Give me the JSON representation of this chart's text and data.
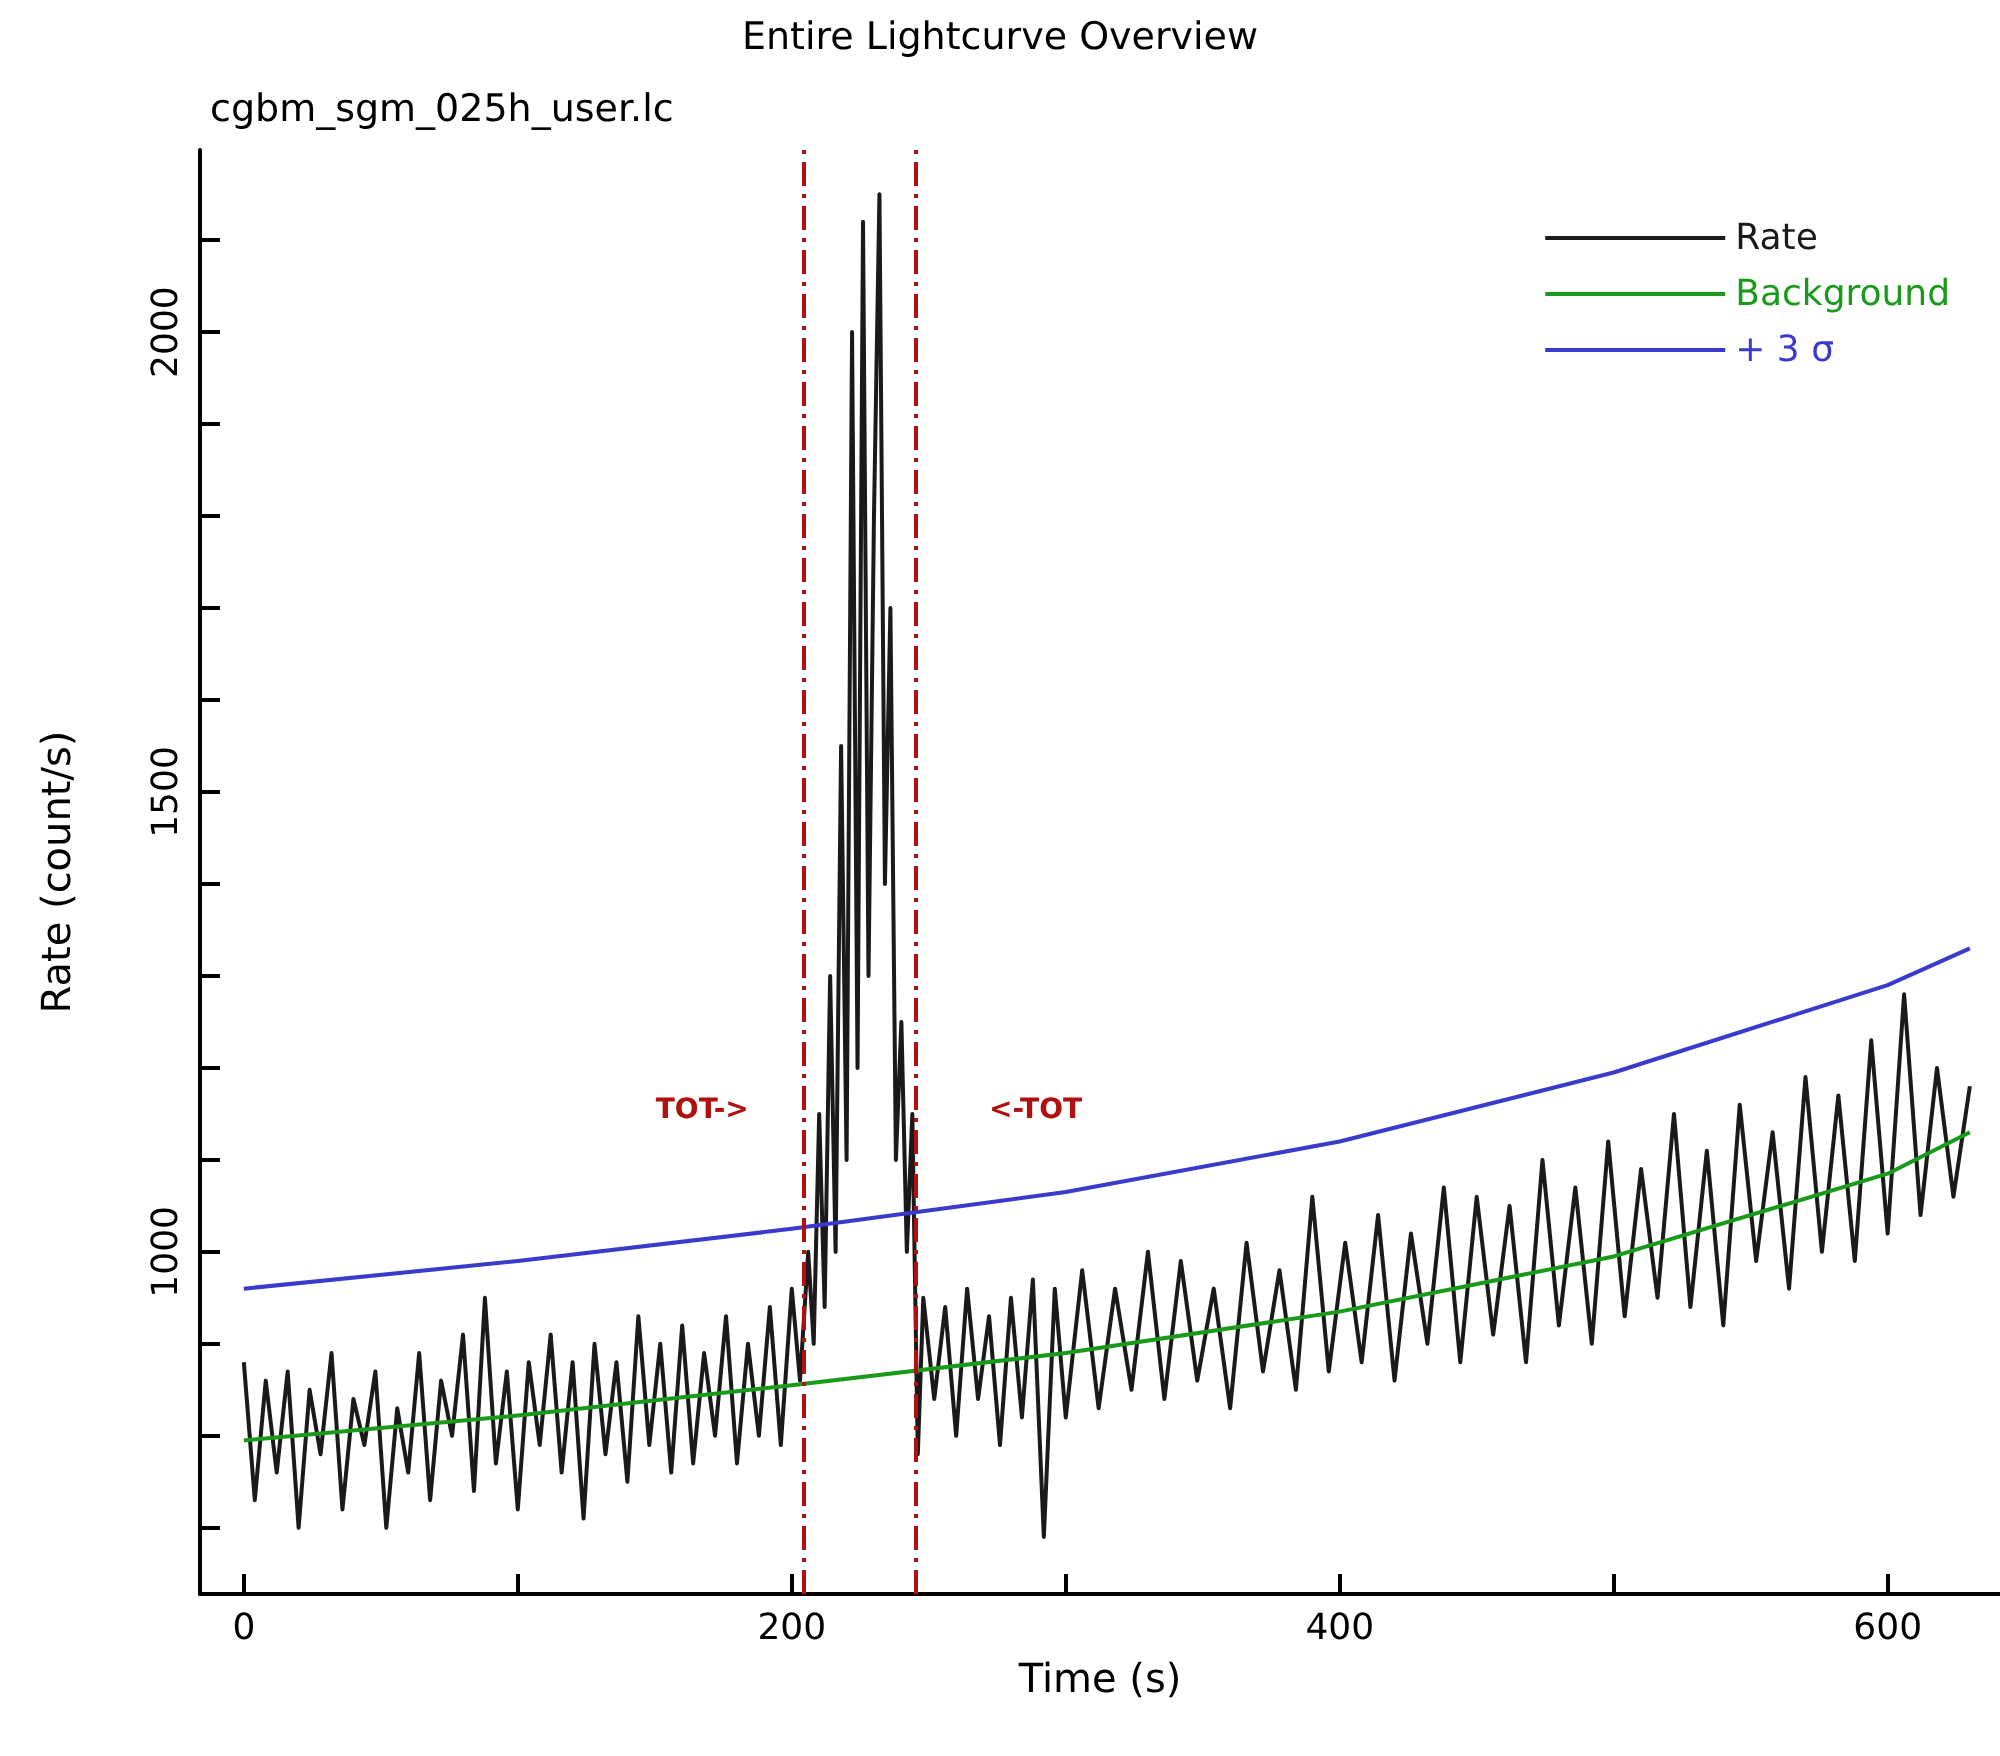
{
  "chart_data": {
    "type": "line",
    "title": "Entire Lightcurve Overview",
    "subtitle": "cgbm_sgm_025h_user.lc",
    "xlabel": "Time (s)",
    "ylabel": "Rate (count/s)",
    "xlim": [
      -16,
      641
    ],
    "ylim": [
      628,
      2198
    ],
    "xticks": [
      0,
      {
        "value": 100,
        "label": null
      },
      200,
      {
        "value": 300,
        "label": null
      },
      400,
      {
        "value": 500,
        "label": null
      },
      600
    ],
    "yticks": [
      {
        "value": 700,
        "label": null
      },
      {
        "value": 800,
        "label": null
      },
      {
        "value": 900,
        "label": null
      },
      1000,
      {
        "value": 1100,
        "label": null
      },
      {
        "value": 1200,
        "label": null
      },
      {
        "value": 1300,
        "label": null
      },
      {
        "value": 1400,
        "label": null
      },
      1500,
      {
        "value": 1600,
        "label": null
      },
      {
        "value": 1700,
        "label": null
      },
      {
        "value": 1800,
        "label": null
      },
      {
        "value": 1900,
        "label": null
      },
      2000,
      {
        "value": 2100,
        "label": null
      }
    ],
    "grid": false,
    "legend": "top right",
    "marker": "none",
    "series": [
      {
        "name": "Rate",
        "color": "#1a1a1a",
        "x": [
          0,
          4,
          8,
          12,
          16,
          20,
          24,
          28,
          32,
          36,
          40,
          44,
          48,
          52,
          56,
          60,
          64,
          68,
          72,
          76,
          80,
          84,
          88,
          92,
          96,
          100,
          104,
          108,
          112,
          116,
          120,
          124,
          128,
          132,
          136,
          140,
          144,
          148,
          152,
          156,
          160,
          164,
          168,
          172,
          176,
          180,
          184,
          188,
          192,
          196,
          200,
          203,
          206,
          208,
          210,
          212,
          214,
          216,
          218,
          220,
          222,
          224,
          226,
          228,
          230,
          232,
          234,
          236,
          238,
          240,
          242,
          244,
          246,
          248,
          252,
          256,
          260,
          264,
          268,
          272,
          276,
          280,
          284,
          288,
          292,
          296,
          300,
          306,
          312,
          318,
          324,
          330,
          336,
          342,
          348,
          354,
          360,
          366,
          372,
          378,
          384,
          390,
          396,
          402,
          408,
          414,
          420,
          426,
          432,
          438,
          444,
          450,
          456,
          462,
          468,
          474,
          480,
          486,
          492,
          498,
          504,
          510,
          516,
          522,
          528,
          534,
          540,
          546,
          552,
          558,
          564,
          570,
          576,
          582,
          588,
          594,
          600,
          606,
          612,
          618,
          624,
          630
        ],
        "values": [
          880,
          730,
          860,
          760,
          870,
          700,
          850,
          780,
          890,
          720,
          840,
          790,
          870,
          700,
          830,
          760,
          890,
          730,
          860,
          800,
          910,
          740,
          950,
          770,
          870,
          720,
          880,
          790,
          910,
          760,
          880,
          710,
          900,
          780,
          880,
          750,
          930,
          790,
          900,
          760,
          920,
          770,
          890,
          800,
          930,
          770,
          900,
          800,
          940,
          790,
          960,
          860,
          1000,
          900,
          1150,
          940,
          1300,
          1000,
          1550,
          1100,
          2000,
          1200,
          2120,
          1300,
          1800,
          2150,
          1400,
          1700,
          1100,
          1250,
          1000,
          1150,
          780,
          950,
          840,
          940,
          800,
          960,
          840,
          930,
          790,
          950,
          820,
          970,
          690,
          960,
          820,
          980,
          830,
          960,
          850,
          1000,
          840,
          990,
          860,
          960,
          830,
          1010,
          870,
          980,
          850,
          1060,
          870,
          1010,
          880,
          1040,
          860,
          1020,
          900,
          1070,
          880,
          1060,
          910,
          1050,
          880,
          1100,
          920,
          1070,
          900,
          1120,
          930,
          1090,
          950,
          1150,
          940,
          1110,
          920,
          1160,
          990,
          1130,
          960,
          1190,
          1000,
          1170,
          990,
          1230,
          1020,
          1280,
          1040,
          1200,
          1060,
          1180
        ]
      },
      {
        "name": "Background",
        "color": "#1a9a1a",
        "x": [
          0,
          100,
          200,
          300,
          400,
          500,
          600,
          630
        ],
        "values": [
          795,
          822,
          855,
          890,
          935,
          995,
          1085,
          1130
        ]
      },
      {
        "name": "+ 3 σ",
        "color": "#3a3acc",
        "x": [
          0,
          100,
          200,
          300,
          400,
          500,
          600,
          630
        ],
        "values": [
          960,
          990,
          1025,
          1065,
          1120,
          1195,
          1290,
          1330
        ]
      }
    ],
    "ref_lines": [
      {
        "axis": "x",
        "value": 204,
        "label": "TOT->",
        "color": "#b01010",
        "line_style": "dashed"
      },
      {
        "axis": "x",
        "value": 245,
        "label": "<-TOT",
        "color": "#b01010",
        "line_style": "dashed"
      }
    ]
  }
}
